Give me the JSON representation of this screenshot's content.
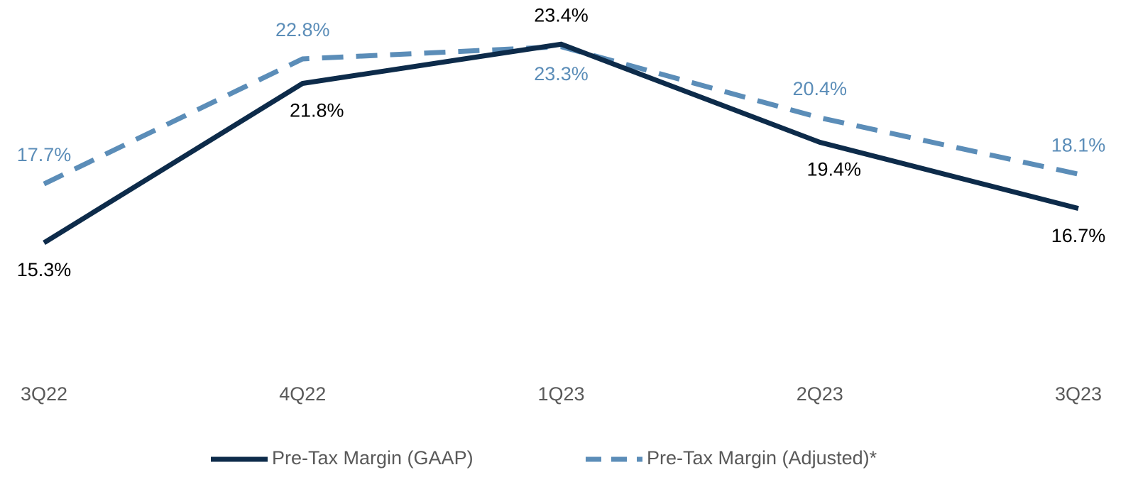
{
  "chart_data": {
    "type": "line",
    "categories": [
      "3Q22",
      "4Q22",
      "1Q23",
      "2Q23",
      "3Q23"
    ],
    "series": [
      {
        "name": "Pre-Tax Margin (GAAP)",
        "color": "#0d2b4a",
        "dash": false,
        "values": [
          15.3,
          21.8,
          23.4,
          19.4,
          16.7
        ],
        "value_labels": [
          "15.3%",
          "21.8%",
          "23.4%",
          "19.4%",
          "16.7%"
        ]
      },
      {
        "name": "Pre-Tax Margin (Adjusted)*",
        "color": "#5b8db8",
        "dash": true,
        "values": [
          17.7,
          22.8,
          23.3,
          20.4,
          18.1
        ],
        "value_labels": [
          "17.7%",
          "22.8%",
          "23.3%",
          "20.4%",
          "18.1%"
        ]
      }
    ],
    "ylim": [
      10,
      25
    ],
    "legend": "bottom"
  }
}
